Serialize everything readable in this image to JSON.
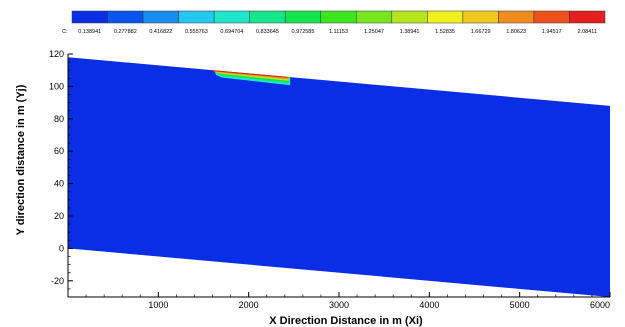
{
  "chart_data": {
    "type": "heatmap",
    "title": "",
    "xlabel": "X Direction Distance in m (Xi)",
    "ylabel": "Y direction distance in m (Yj)",
    "xlim": [
      0,
      6000
    ],
    "ylim": [
      -30,
      120
    ],
    "x_ticks": [
      1000,
      2000,
      3000,
      4000,
      5000,
      6000
    ],
    "y_ticks": [
      -20,
      0,
      20,
      40,
      60,
      80,
      100,
      120
    ],
    "colorbar": {
      "prefix": "C:",
      "levels": [
        "0.138941",
        "0.277882",
        "0.416822",
        "0.555763",
        "0.694704",
        "0.833645",
        "0.972585",
        "1.11153",
        "1.25047",
        "1.38941",
        "1.52835",
        "1.66729",
        "1.80623",
        "1.94517",
        "2.08411"
      ],
      "colors": [
        "#0a2ee6",
        "#0a55f0",
        "#1a8cf0",
        "#22c8f0",
        "#1ee6c8",
        "#14e68c",
        "#14e650",
        "#3ce61e",
        "#78e61e",
        "#b4e61e",
        "#f0f01e",
        "#f0c81e",
        "#f08c1e",
        "#f0501e",
        "#e61e1e"
      ]
    },
    "domain": {
      "top_edge": [
        {
          "x": 0,
          "y": 118
        },
        {
          "x": 6000,
          "y": 88
        }
      ],
      "bottom_edge": [
        {
          "x": 0,
          "y": 0
        },
        {
          "x": 6000,
          "y": -30
        }
      ]
    },
    "background_value": "0.138941",
    "plume": {
      "x_range": [
        1600,
        2450
      ],
      "peak_value": "2.08411"
    }
  }
}
